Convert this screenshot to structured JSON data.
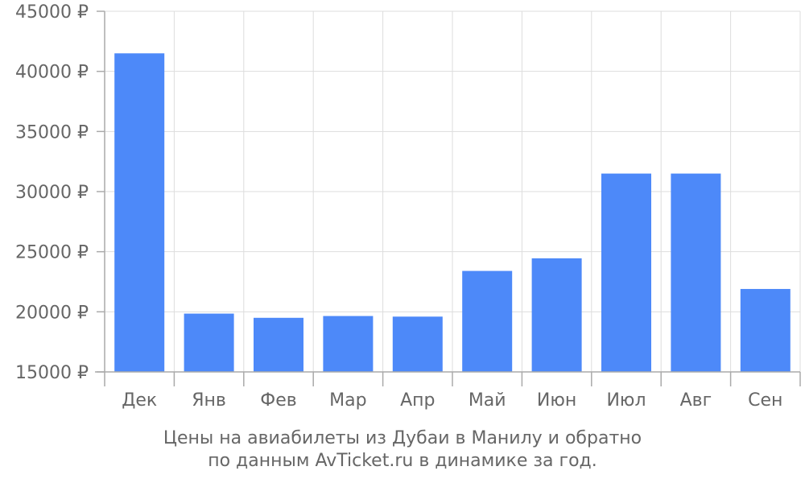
{
  "chart_data": {
    "type": "bar",
    "categories": [
      "Дек",
      "Янв",
      "Фев",
      "Мар",
      "Апр",
      "Май",
      "Июн",
      "Июл",
      "Авг",
      "Сен"
    ],
    "values": [
      41500,
      19850,
      19500,
      19650,
      19600,
      23400,
      24450,
      31500,
      31500,
      21900
    ],
    "ylim": [
      15000,
      45000
    ],
    "yticks": [
      15000,
      20000,
      25000,
      30000,
      35000,
      40000,
      45000
    ],
    "ytick_labels": [
      "15000 ₽",
      "20000 ₽",
      "25000 ₽",
      "30000 ₽",
      "35000 ₽",
      "40000 ₽",
      "45000 ₽"
    ],
    "grid": true,
    "bar_color": "#4d89f9",
    "grid_color": "#dddddd",
    "axis_color": "#aaaaaa",
    "text_color": "#666666"
  },
  "caption": {
    "line1": "Цены на авиабилеты из Дубаи в Манилу и обратно",
    "line2": "по данным AvTicket.ru в динамике за год."
  }
}
